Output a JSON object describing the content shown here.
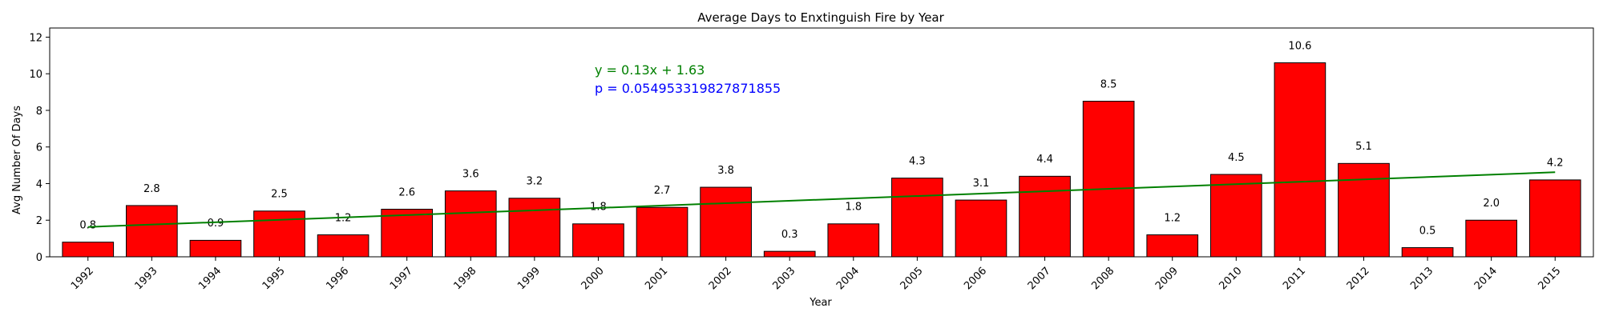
{
  "chart_data": {
    "type": "bar",
    "title": "Average Days to Enxtinguish Fire by Year",
    "xlabel": "Year",
    "ylabel": "Avg Number Of Days",
    "categories": [
      "1992",
      "1993",
      "1994",
      "1995",
      "1996",
      "1997",
      "1998",
      "1999",
      "2000",
      "2001",
      "2002",
      "2003",
      "2004",
      "2005",
      "2006",
      "2007",
      "2008",
      "2009",
      "2010",
      "2011",
      "2012",
      "2013",
      "2014",
      "2015"
    ],
    "values": [
      0.8,
      2.8,
      0.9,
      2.5,
      1.2,
      2.6,
      3.6,
      3.2,
      1.8,
      2.7,
      3.8,
      0.3,
      1.8,
      4.3,
      3.1,
      4.4,
      8.5,
      1.2,
      4.5,
      10.6,
      5.1,
      0.5,
      2.0,
      4.2
    ],
    "value_labels": [
      "0.8",
      "2.8",
      "0.9",
      "2.5",
      "1.2",
      "2.6",
      "3.6",
      "3.2",
      "1.8",
      "2.7",
      "3.8",
      "0.3",
      "1.8",
      "4.3",
      "3.1",
      "4.4",
      "8.5",
      "1.2",
      "4.5",
      "10.6",
      "5.1",
      "0.5",
      "2.0",
      "4.2"
    ],
    "ylim": [
      0,
      12.5
    ],
    "yticks": [
      0,
      2,
      4,
      6,
      8,
      10,
      12
    ],
    "grid": false,
    "bar_color": "#ff0000",
    "bar_edge_color": "#000000",
    "trendline": {
      "slope": 0.13,
      "intercept": 1.63,
      "color": "#008000",
      "equation_text": "y = 0.13x + 1.63",
      "equation_color": "#008000",
      "p_text": "p = 0.054953319827871855",
      "p_color": "#0000ff"
    }
  }
}
